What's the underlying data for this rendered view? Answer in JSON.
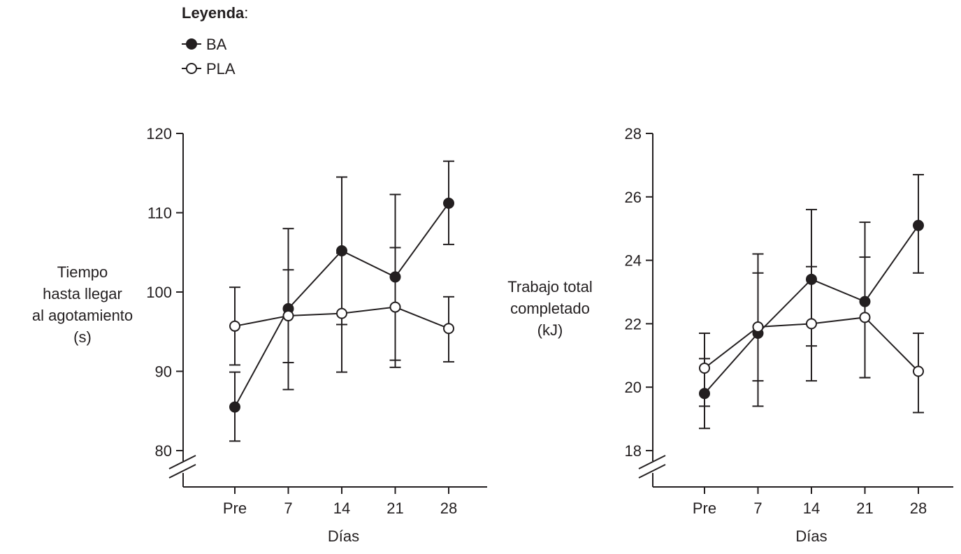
{
  "legend": {
    "title": "Leyenda",
    "title_suffix": ":",
    "entries": [
      {
        "series": "BA",
        "marker": "filled-circle"
      },
      {
        "series": "PLA",
        "marker": "open-circle"
      }
    ]
  },
  "colors": {
    "ink": "#231f20",
    "background": "#ffffff",
    "open_marker_fill": "#ffffff"
  },
  "chart_data": [
    {
      "type": "line",
      "xlabel": "Días",
      "ylabel_lines": [
        "Tiempo",
        "hasta llegar",
        "al agotamiento",
        "(s)"
      ],
      "categories": [
        "Pre",
        "7",
        "14",
        "21",
        "28"
      ],
      "ylim": [
        80,
        120
      ],
      "yticks": [
        80,
        90,
        100,
        110,
        120
      ],
      "axis_break": true,
      "grid": false,
      "series": [
        {
          "name": "BA",
          "marker": "filled-circle",
          "values": [
            85.5,
            97.9,
            105.2,
            101.9,
            111.2
          ],
          "error_low": [
            81.2,
            87.7,
            95.9,
            90.5,
            106.0
          ],
          "error_high": [
            89.9,
            108.0,
            114.5,
            112.3,
            116.5
          ]
        },
        {
          "name": "PLA",
          "marker": "open-circle",
          "values": [
            95.7,
            97.0,
            97.3,
            98.1,
            95.4
          ],
          "error_low": [
            90.8,
            91.1,
            89.9,
            91.4,
            91.2
          ],
          "error_high": [
            100.6,
            102.8,
            104.9,
            105.6,
            99.4
          ]
        }
      ]
    },
    {
      "type": "line",
      "xlabel": "Días",
      "ylabel_lines": [
        "Trabajo total",
        "completado",
        "(kJ)"
      ],
      "categories": [
        "Pre",
        "7",
        "14",
        "21",
        "28"
      ],
      "ylim": [
        18,
        28
      ],
      "yticks": [
        18,
        20,
        22,
        24,
        26,
        28
      ],
      "axis_break": true,
      "grid": false,
      "series": [
        {
          "name": "BA",
          "marker": "filled-circle",
          "values": [
            19.8,
            21.7,
            23.4,
            22.7,
            25.1
          ],
          "error_low": [
            18.7,
            19.4,
            21.3,
            20.3,
            23.6
          ],
          "error_high": [
            20.9,
            24.2,
            25.6,
            25.2,
            26.7
          ]
        },
        {
          "name": "PLA",
          "marker": "open-circle",
          "values": [
            20.6,
            21.9,
            22.0,
            22.2,
            20.5
          ],
          "error_low": [
            19.4,
            20.2,
            20.2,
            20.3,
            19.2
          ],
          "error_high": [
            21.7,
            23.6,
            23.8,
            24.1,
            21.7
          ]
        }
      ]
    }
  ]
}
